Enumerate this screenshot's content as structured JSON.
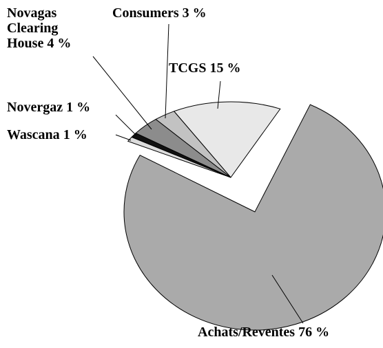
{
  "chart_data": {
    "type": "pie",
    "categories": [
      "TCGS",
      "Consumers",
      "Novagas Clearing House",
      "Novergaz",
      "Wascana",
      "Achats/Reventes"
    ],
    "values": [
      15,
      3,
      4,
      1,
      1,
      76
    ],
    "value_labels": [
      "15 %",
      "3 %",
      "4 %",
      "1 %",
      "1 %",
      "76 %"
    ],
    "colors": [
      "#e8e8e8",
      "#c2c2c2",
      "#8c8c8c",
      "#111111",
      "#dcdcdc",
      "#aaaaaa"
    ]
  }
}
